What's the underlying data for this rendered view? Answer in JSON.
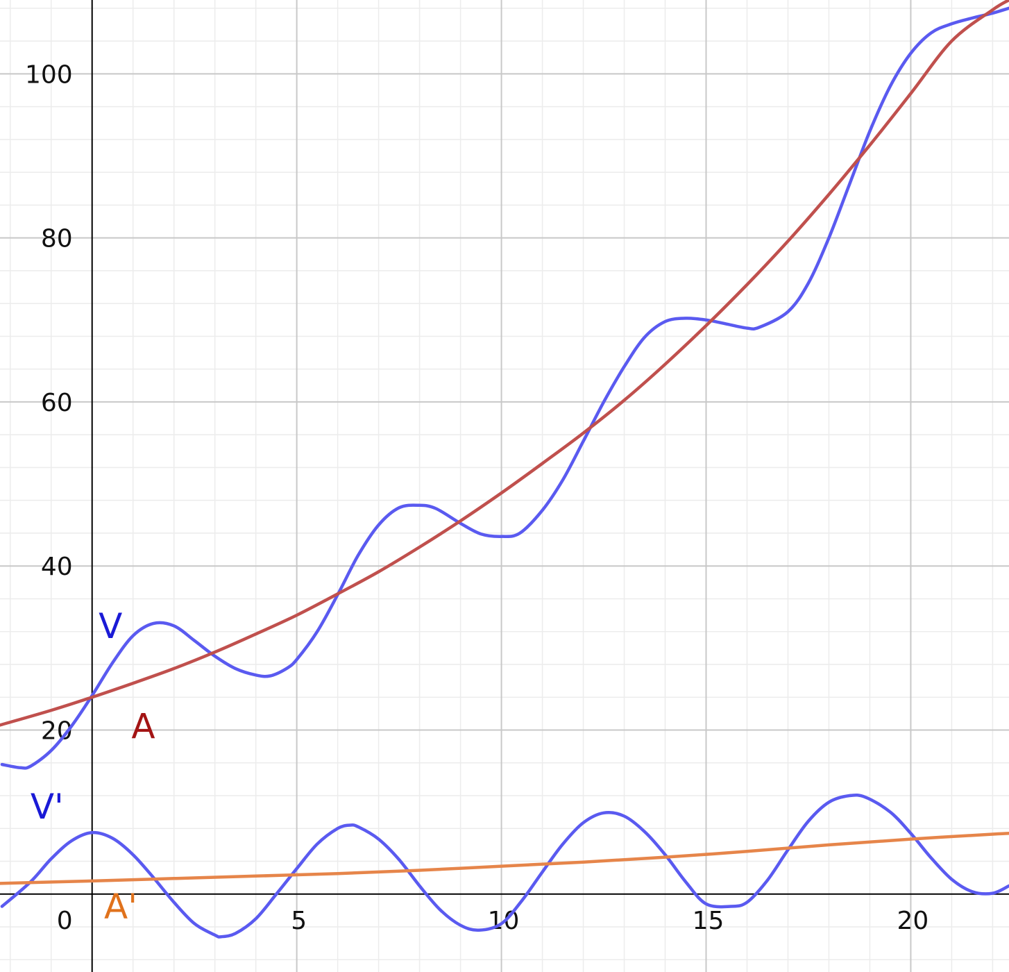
{
  "chart_data": {
    "type": "line",
    "title": "",
    "xlabel": "",
    "ylabel": "",
    "xlim": [
      -2.25,
      22.4
    ],
    "ylim": [
      -9.5,
      109
    ],
    "grid": {
      "major": true,
      "minor": true
    },
    "x_ticks": [
      {
        "value": 0,
        "label": "0"
      },
      {
        "value": 5,
        "label": "5"
      },
      {
        "value": 10,
        "label": "10"
      },
      {
        "value": 15,
        "label": "15"
      },
      {
        "value": 20,
        "label": "20"
      }
    ],
    "y_ticks": [
      {
        "value": 20,
        "label": "20"
      },
      {
        "value": 40,
        "label": "40"
      },
      {
        "value": 60,
        "label": "60"
      },
      {
        "value": 80,
        "label": "80"
      },
      {
        "value": 100,
        "label": "100"
      }
    ],
    "series": [
      {
        "name": "V",
        "color": "#5a5af0",
        "label_color": "#1a1ad6",
        "x": [
          -2.2,
          -1.75,
          -1.5,
          -1.0,
          -0.5,
          0.0,
          0.5,
          1.0,
          1.5,
          2.0,
          2.5,
          3.0,
          3.5,
          4.0,
          4.35,
          4.75,
          5.0,
          5.5,
          6.0,
          6.5,
          7.0,
          7.5,
          8.0,
          8.4,
          9.0,
          9.5,
          10.0,
          10.45,
          11.0,
          11.5,
          12.0,
          12.5,
          13.0,
          13.5,
          14.0,
          14.5,
          15.0,
          15.5,
          16.0,
          16.3,
          17.0,
          17.5,
          18.0,
          18.5,
          19.0,
          19.5,
          20.0,
          20.5,
          21.0,
          21.5,
          22.0,
          22.4
        ],
        "y": [
          15.8,
          15.4,
          15.6,
          17.5,
          20.5,
          24.2,
          28.2,
          31.5,
          33.0,
          32.7,
          30.9,
          29.0,
          27.5,
          26.7,
          26.6,
          27.5,
          28.6,
          32.0,
          36.5,
          41.3,
          45.0,
          47.1,
          47.4,
          47.0,
          45.2,
          43.9,
          43.6,
          44.0,
          46.8,
          50.5,
          55.2,
          60.0,
          64.3,
          67.9,
          69.8,
          70.2,
          70.0,
          69.5,
          69.0,
          69.1,
          71.0,
          74.5,
          80.0,
          86.5,
          93.0,
          98.5,
          102.5,
          105.0,
          106.1,
          106.8,
          107.4,
          108.0
        ],
        "label": "V"
      },
      {
        "name": "A",
        "color": "#c0504d",
        "label_color": "#a31414",
        "x": [
          -2.25,
          -1.0,
          0.0,
          1.0,
          2.0,
          3.0,
          4.0,
          5.0,
          6.0,
          7.0,
          8.0,
          9.0,
          10.0,
          11.0,
          12.0,
          13.0,
          14.0,
          15.0,
          16.0,
          17.0,
          18.0,
          19.0,
          20.0,
          21.0,
          22.0,
          22.4
        ],
        "y": [
          20.6,
          22.4,
          24.0,
          25.7,
          27.5,
          29.5,
          31.7,
          34.0,
          36.6,
          39.3,
          42.3,
          45.5,
          48.9,
          52.5,
          56.2,
          60.2,
          64.6,
          69.3,
          74.3,
          79.6,
          85.3,
          91.3,
          97.6,
          104.0,
          107.8,
          109.0
        ],
        "label": "A"
      },
      {
        "name": "V'",
        "color": "#5a5af0",
        "label_color": "#1a1ad6",
        "x": [
          -2.2,
          -1.5,
          -1.0,
          -0.5,
          0.0,
          0.5,
          1.0,
          1.5,
          2.0,
          2.5,
          3.0,
          3.15,
          3.5,
          4.0,
          4.5,
          5.0,
          5.5,
          6.0,
          6.3,
          6.5,
          7.0,
          7.5,
          8.0,
          8.5,
          9.0,
          9.45,
          10.0,
          10.5,
          11.0,
          11.5,
          12.0,
          12.5,
          13.0,
          13.5,
          14.0,
          14.5,
          15.0,
          15.6,
          16.0,
          16.5,
          17.0,
          17.5,
          18.0,
          18.5,
          18.9,
          19.5,
          20.0,
          20.5,
          21.0,
          21.5,
          22.0,
          22.4
        ],
        "y": [
          -1.5,
          1.5,
          4.3,
          6.5,
          7.5,
          6.8,
          4.8,
          2.0,
          -1.0,
          -3.6,
          -5.0,
          -5.2,
          -4.8,
          -3.0,
          0.0,
          3.1,
          6.1,
          8.0,
          8.4,
          8.2,
          6.7,
          4.2,
          1.0,
          -1.9,
          -3.8,
          -4.4,
          -3.6,
          -0.8,
          2.7,
          6.1,
          8.7,
          9.9,
          9.5,
          7.6,
          4.8,
          1.5,
          -1.2,
          -1.5,
          -1.0,
          1.7,
          5.4,
          8.9,
          11.2,
          12.0,
          11.8,
          10.0,
          7.4,
          4.4,
          1.8,
          0.3,
          0.1,
          1.0
        ],
        "label": "V'"
      },
      {
        "name": "A'",
        "color": "#e6854a",
        "label_color": "#e0721c",
        "x": [
          -2.25,
          0.0,
          2.0,
          4.0,
          6.0,
          8.0,
          10.0,
          12.0,
          14.0,
          16.0,
          18.0,
          20.0,
          22.0,
          22.4
        ],
        "y": [
          1.3,
          1.6,
          1.9,
          2.2,
          2.5,
          2.9,
          3.4,
          3.9,
          4.5,
          5.2,
          6.0,
          6.7,
          7.3,
          7.4
        ],
        "label": "A'"
      }
    ],
    "labels": [
      {
        "text": "V",
        "x": 0.45,
        "y": 31.2,
        "color": "#1a1ad6"
      },
      {
        "text": "A",
        "x": 1.25,
        "y": 19.0,
        "color": "#a31414"
      },
      {
        "text": "V'",
        "x": -1.1,
        "y": 9.2,
        "color": "#1a1ad6"
      },
      {
        "text": "A'",
        "x": 0.7,
        "y": -3.0,
        "color": "#e0721c"
      }
    ]
  }
}
